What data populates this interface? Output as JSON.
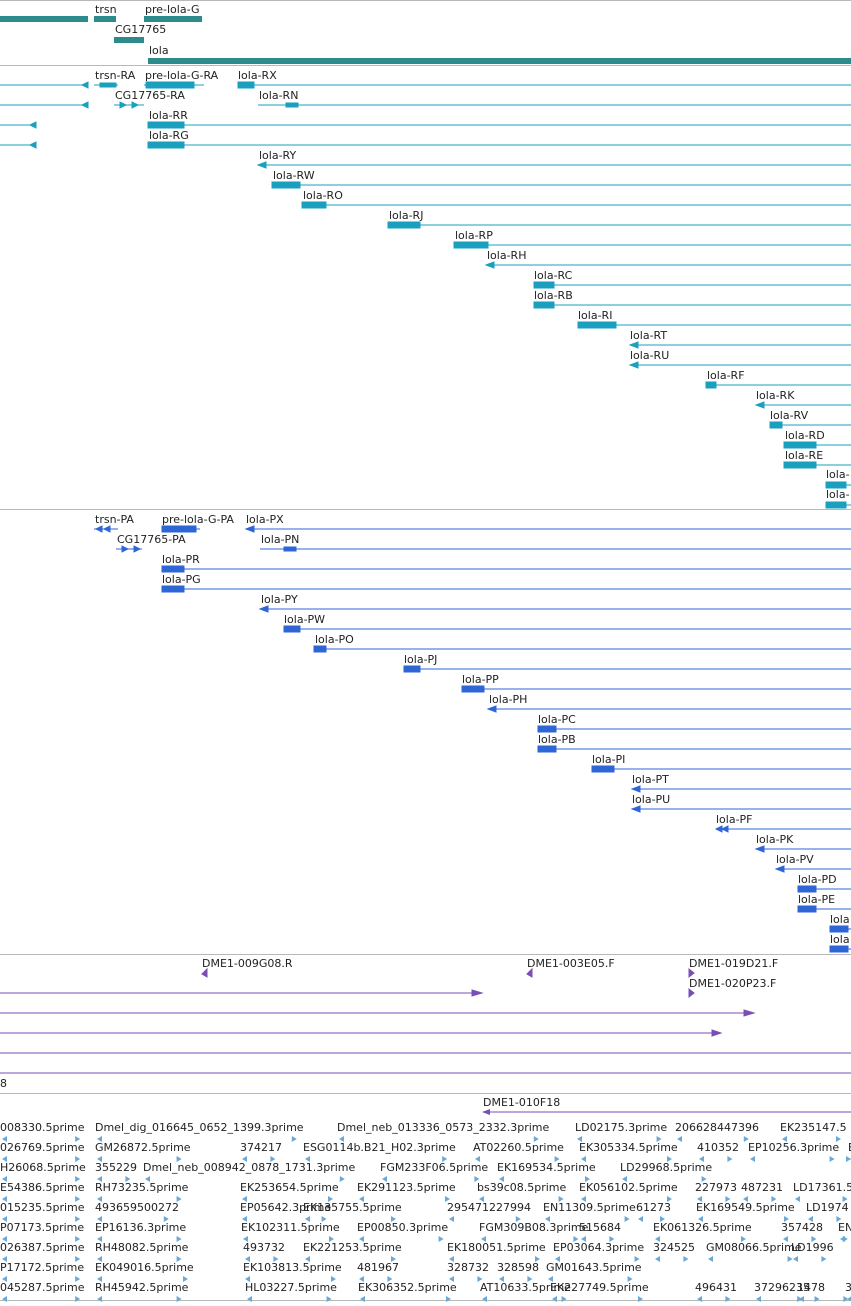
{
  "colors": {
    "gene": "#2e8b8b",
    "rna": "#1a9fbf",
    "protein": "#2f66d6",
    "clone": "#7a4fb5",
    "est": "#6aa8d8",
    "divider": "#b8b8b8"
  },
  "genes": [
    {
      "label": "trsn",
      "id": "trsn"
    },
    {
      "label": "pre-lola-G",
      "id": "pre-lola-g"
    },
    {
      "label": "CG17765",
      "id": "cg17765"
    },
    {
      "label": "lola",
      "id": "lola"
    }
  ],
  "rnas": [
    "trsn-RA",
    "pre-lola-G-RA",
    "lola-RX",
    "CG17765-RA",
    "lola-RN",
    "lola-RR",
    "lola-RG",
    "lola-RY",
    "lola-RW",
    "lola-RO",
    "lola-RJ",
    "lola-RP",
    "lola-RH",
    "lola-RC",
    "lola-RB",
    "lola-RI",
    "lola-RT",
    "lola-RU",
    "lola-RF",
    "lola-RK",
    "lola-RV",
    "lola-RD",
    "lola-RE",
    "lola-",
    "lola-"
  ],
  "proteins": [
    "trsn-PA",
    "pre-lola-G-PA",
    "lola-PX",
    "CG17765-PA",
    "lola-PN",
    "lola-PR",
    "lola-PG",
    "lola-PY",
    "lola-PW",
    "lola-PO",
    "lola-PJ",
    "lola-PP",
    "lola-PH",
    "lola-PC",
    "lola-PB",
    "lola-PI",
    "lola-PT",
    "lola-PU",
    "lola-PF",
    "lola-PK",
    "lola-PV",
    "lola-PD",
    "lola-PE",
    "lola",
    "lola"
  ],
  "clones": [
    "DME1-009G08.R",
    "DME1-003E05.F",
    "DME1-019D21.F",
    "DME1-020P23.F",
    "8",
    "DME1-010F18"
  ],
  "ests": [
    [
      "008330.5prime",
      "Dmel_dig_016645_0652_1399.3prime",
      "Dmel_neb_013336_0573_2332.3prime",
      "LD02175.3prime",
      "206628447396",
      "EK235147.5"
    ],
    [
      "026769.5prime",
      "GM26872.5prime",
      "374217",
      "ESG0114b.B21_H02.3prime",
      "AT02260.5prime",
      "EK305334.5prime",
      "410352",
      "EP10256.3prime",
      "E"
    ],
    [
      "H26068.5prime",
      "355229",
      "Dmel_neb_008942_0878_1731.3prime",
      "FGM233F06.5prime",
      "EK169534.5prime",
      "LD29968.5prime"
    ],
    [
      "E54386.5prime",
      "RH73235.5prime",
      "EK253654.5prime",
      "EK291123.5prime",
      "bs39c08.5prime",
      "EK056102.5prime",
      "227973",
      "487231",
      "LD17361.5"
    ],
    [
      "015235.5prime",
      "493659500272",
      "EP05642.3prime",
      "EK135755.5prime",
      "295471227994",
      "EN11309.5prime",
      "61273",
      "EK169549.5prime",
      "LD1974"
    ],
    [
      "P07173.5prime",
      "EP16136.3prime",
      "EK102311.5prime",
      "EP00850.3prime",
      "FGM309B08.3prime",
      "515684",
      "EK061326.5prime",
      "357428",
      "EN"
    ],
    [
      "026387.5prime",
      "RH48082.5prime",
      "493732",
      "EK221253.5prime",
      "EK180051.5prime",
      "EP03064.3prime",
      "324525",
      "GM08066.5prime",
      "LD1996"
    ],
    [
      "P17172.5prime",
      "EK049016.5prime",
      "EK103813.5prime",
      "481967",
      "328732",
      "328598",
      "GM01643.5prime"
    ],
    [
      "045287.5prime",
      "RH45942.5prime",
      "HL03227.5prime",
      "EK306352.5prime",
      "AT10633.5prime",
      "EK227749.5prime",
      "496431",
      "37296235",
      "1478",
      "3"
    ]
  ]
}
